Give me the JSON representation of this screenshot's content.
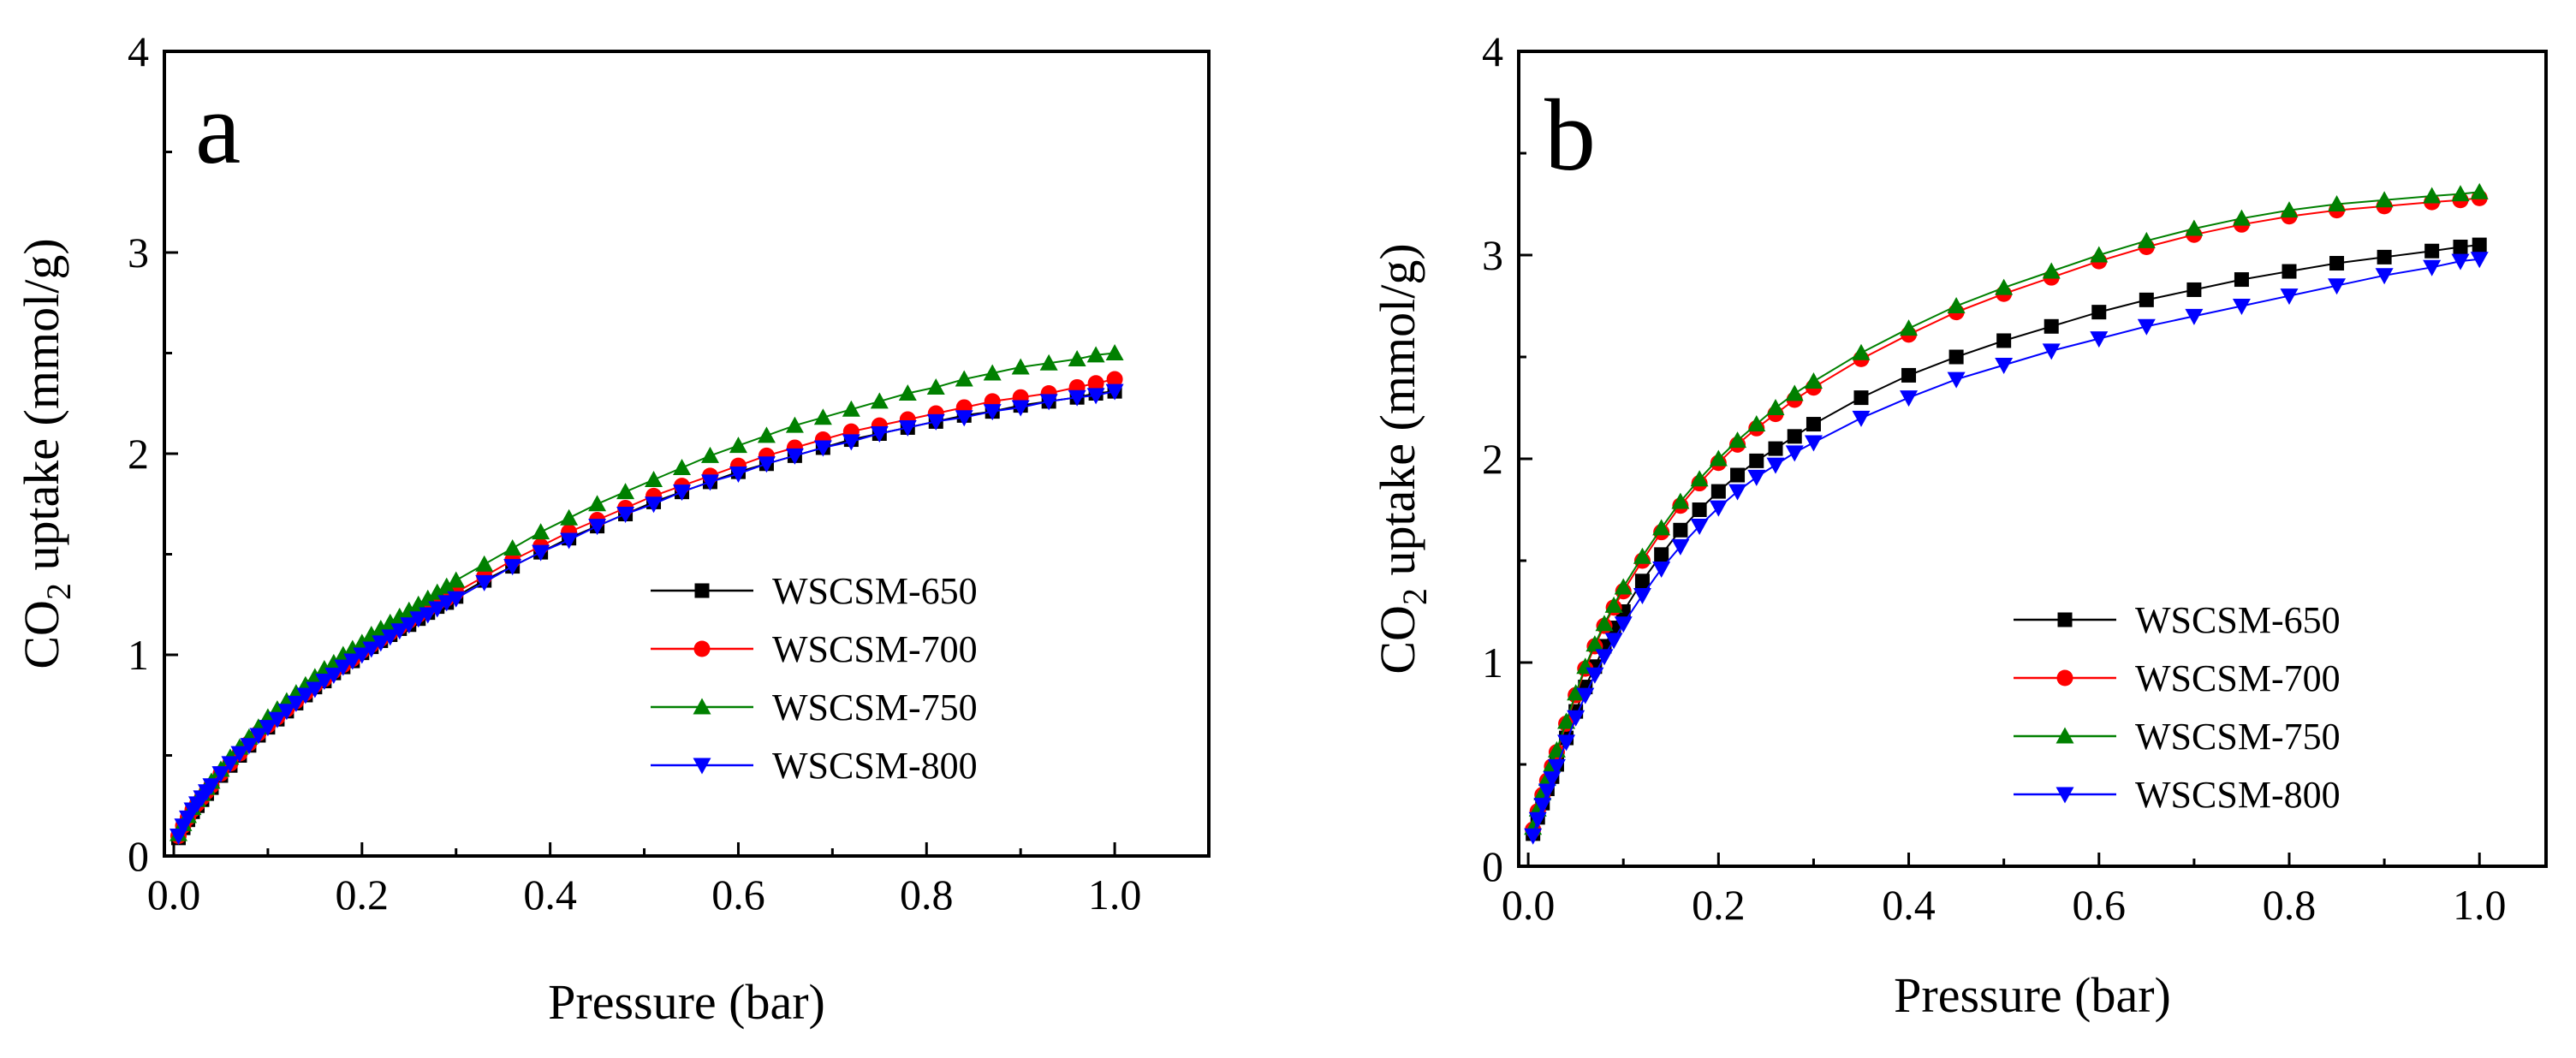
{
  "chart_data": [
    {
      "type": "line",
      "panel_label": "a",
      "title": "",
      "xlabel": "Pressure (bar)",
      "ylabel_main": "CO",
      "ylabel_sub": "2",
      "ylabel_rest": " uptake (mmol/g)",
      "xlim": [
        -0.01,
        1.1
      ],
      "ylim": [
        0,
        4
      ],
      "xticks": [
        0.0,
        0.2,
        0.4,
        0.6,
        0.8,
        1.0
      ],
      "xtick_labels": [
        "0.0",
        "0.2",
        "0.4",
        "0.6",
        "0.8",
        "1.0"
      ],
      "yticks": [
        0,
        1,
        2,
        3,
        4
      ],
      "ytick_labels": [
        "0",
        "1",
        "2",
        "3",
        "4"
      ],
      "legend_position": "middle-right",
      "x": [
        0.005,
        0.01,
        0.015,
        0.02,
        0.025,
        0.03,
        0.035,
        0.04,
        0.05,
        0.06,
        0.07,
        0.08,
        0.09,
        0.1,
        0.11,
        0.12,
        0.13,
        0.14,
        0.15,
        0.16,
        0.17,
        0.18,
        0.19,
        0.2,
        0.21,
        0.22,
        0.23,
        0.24,
        0.25,
        0.26,
        0.27,
        0.28,
        0.29,
        0.3,
        0.33,
        0.36,
        0.39,
        0.42,
        0.45,
        0.48,
        0.51,
        0.54,
        0.57,
        0.6,
        0.63,
        0.66,
        0.69,
        0.72,
        0.75,
        0.78,
        0.81,
        0.84,
        0.87,
        0.9,
        0.93,
        0.96,
        0.98,
        1.0
      ],
      "series": [
        {
          "name": "WSCSM-650",
          "color": "#000000",
          "marker": "square",
          "values": [
            0.09,
            0.14,
            0.18,
            0.22,
            0.25,
            0.28,
            0.31,
            0.34,
            0.4,
            0.45,
            0.5,
            0.55,
            0.6,
            0.64,
            0.68,
            0.72,
            0.76,
            0.8,
            0.84,
            0.87,
            0.91,
            0.94,
            0.97,
            1.01,
            1.04,
            1.07,
            1.1,
            1.13,
            1.15,
            1.18,
            1.21,
            1.24,
            1.26,
            1.29,
            1.37,
            1.44,
            1.51,
            1.58,
            1.64,
            1.7,
            1.76,
            1.81,
            1.86,
            1.91,
            1.95,
            1.99,
            2.03,
            2.07,
            2.1,
            2.13,
            2.16,
            2.19,
            2.21,
            2.24,
            2.26,
            2.28,
            2.3,
            2.31
          ]
        },
        {
          "name": "WSCSM-700",
          "color": "#ff0000",
          "marker": "circle",
          "values": [
            0.1,
            0.15,
            0.19,
            0.23,
            0.26,
            0.29,
            0.32,
            0.35,
            0.41,
            0.46,
            0.51,
            0.56,
            0.61,
            0.65,
            0.69,
            0.73,
            0.77,
            0.81,
            0.85,
            0.88,
            0.92,
            0.95,
            0.98,
            1.02,
            1.05,
            1.08,
            1.11,
            1.14,
            1.17,
            1.2,
            1.23,
            1.26,
            1.28,
            1.31,
            1.39,
            1.47,
            1.54,
            1.61,
            1.67,
            1.73,
            1.79,
            1.84,
            1.89,
            1.94,
            1.99,
            2.03,
            2.07,
            2.11,
            2.14,
            2.17,
            2.2,
            2.23,
            2.26,
            2.28,
            2.3,
            2.33,
            2.35,
            2.37
          ]
        },
        {
          "name": "WSCSM-750",
          "color": "#008000",
          "marker": "triangle-up",
          "values": [
            0.11,
            0.16,
            0.2,
            0.24,
            0.28,
            0.31,
            0.34,
            0.37,
            0.43,
            0.49,
            0.54,
            0.59,
            0.64,
            0.69,
            0.73,
            0.77,
            0.81,
            0.85,
            0.89,
            0.93,
            0.96,
            1.0,
            1.03,
            1.06,
            1.1,
            1.13,
            1.16,
            1.19,
            1.22,
            1.25,
            1.28,
            1.31,
            1.34,
            1.37,
            1.45,
            1.53,
            1.61,
            1.68,
            1.75,
            1.81,
            1.87,
            1.93,
            1.99,
            2.04,
            2.09,
            2.14,
            2.18,
            2.22,
            2.26,
            2.3,
            2.33,
            2.37,
            2.4,
            2.43,
            2.45,
            2.47,
            2.49,
            2.5
          ]
        },
        {
          "name": "WSCSM-800",
          "color": "#0000ff",
          "marker": "triangle-down",
          "values": [
            0.1,
            0.15,
            0.19,
            0.23,
            0.26,
            0.29,
            0.32,
            0.35,
            0.41,
            0.46,
            0.51,
            0.55,
            0.6,
            0.64,
            0.68,
            0.72,
            0.76,
            0.8,
            0.83,
            0.87,
            0.9,
            0.94,
            0.97,
            1.0,
            1.03,
            1.06,
            1.09,
            1.12,
            1.15,
            1.18,
            1.2,
            1.23,
            1.26,
            1.28,
            1.36,
            1.44,
            1.51,
            1.57,
            1.64,
            1.7,
            1.75,
            1.81,
            1.86,
            1.9,
            1.95,
            1.99,
            2.03,
            2.06,
            2.1,
            2.13,
            2.16,
            2.18,
            2.21,
            2.23,
            2.26,
            2.28,
            2.29,
            2.31
          ]
        }
      ]
    },
    {
      "type": "line",
      "panel_label": "b",
      "title": "",
      "xlabel": "Pressure (bar)",
      "ylabel_main": "CO",
      "ylabel_sub": "2",
      "ylabel_rest": " uptake (mmol/g)",
      "xlim": [
        -0.01,
        1.07
      ],
      "ylim": [
        0,
        4
      ],
      "xticks": [
        0.0,
        0.2,
        0.4,
        0.6,
        0.8,
        1.0
      ],
      "xtick_labels": [
        "0.0",
        "0.2",
        "0.4",
        "0.6",
        "0.8",
        "1.0"
      ],
      "yticks": [
        0,
        1,
        2,
        3,
        4
      ],
      "ytick_labels": [
        "0",
        "1",
        "2",
        "3",
        "4"
      ],
      "legend_position": "bottom-right",
      "x": [
        0.005,
        0.01,
        0.015,
        0.02,
        0.025,
        0.03,
        0.04,
        0.05,
        0.06,
        0.07,
        0.08,
        0.09,
        0.1,
        0.12,
        0.14,
        0.16,
        0.18,
        0.2,
        0.22,
        0.24,
        0.26,
        0.28,
        0.3,
        0.35,
        0.4,
        0.45,
        0.5,
        0.55,
        0.6,
        0.65,
        0.7,
        0.75,
        0.8,
        0.85,
        0.9,
        0.95,
        0.98,
        1.0
      ],
      "series": [
        {
          "name": "WSCSM-650",
          "color": "#000000",
          "marker": "square",
          "values": [
            0.16,
            0.24,
            0.31,
            0.38,
            0.44,
            0.5,
            0.63,
            0.76,
            0.88,
            0.98,
            1.08,
            1.17,
            1.25,
            1.4,
            1.53,
            1.65,
            1.75,
            1.84,
            1.92,
            1.99,
            2.05,
            2.11,
            2.17,
            2.3,
            2.41,
            2.5,
            2.58,
            2.65,
            2.72,
            2.78,
            2.83,
            2.88,
            2.92,
            2.96,
            2.99,
            3.02,
            3.04,
            3.05
          ]
        },
        {
          "name": "WSCSM-700",
          "color": "#ff0000",
          "marker": "circle",
          "values": [
            0.18,
            0.27,
            0.35,
            0.42,
            0.49,
            0.56,
            0.7,
            0.84,
            0.97,
            1.08,
            1.18,
            1.27,
            1.35,
            1.5,
            1.64,
            1.77,
            1.88,
            1.98,
            2.07,
            2.15,
            2.22,
            2.29,
            2.35,
            2.49,
            2.61,
            2.72,
            2.81,
            2.89,
            2.97,
            3.04,
            3.1,
            3.15,
            3.19,
            3.22,
            3.24,
            3.26,
            3.27,
            3.28
          ]
        },
        {
          "name": "WSCSM-750",
          "color": "#008000",
          "marker": "triangle-up",
          "values": [
            0.19,
            0.28,
            0.36,
            0.43,
            0.5,
            0.57,
            0.71,
            0.85,
            0.98,
            1.09,
            1.19,
            1.28,
            1.37,
            1.52,
            1.66,
            1.79,
            1.9,
            2.0,
            2.09,
            2.17,
            2.25,
            2.32,
            2.38,
            2.52,
            2.64,
            2.75,
            2.84,
            2.92,
            3.0,
            3.07,
            3.13,
            3.18,
            3.22,
            3.25,
            3.27,
            3.29,
            3.3,
            3.31
          ]
        },
        {
          "name": "WSCSM-800",
          "color": "#0000ff",
          "marker": "triangle-down",
          "values": [
            0.15,
            0.23,
            0.3,
            0.37,
            0.43,
            0.49,
            0.61,
            0.73,
            0.84,
            0.94,
            1.03,
            1.11,
            1.19,
            1.33,
            1.46,
            1.57,
            1.67,
            1.76,
            1.84,
            1.91,
            1.97,
            2.03,
            2.08,
            2.2,
            2.3,
            2.39,
            2.46,
            2.53,
            2.59,
            2.65,
            2.7,
            2.75,
            2.8,
            2.85,
            2.9,
            2.94,
            2.97,
            2.98
          ]
        }
      ]
    }
  ]
}
